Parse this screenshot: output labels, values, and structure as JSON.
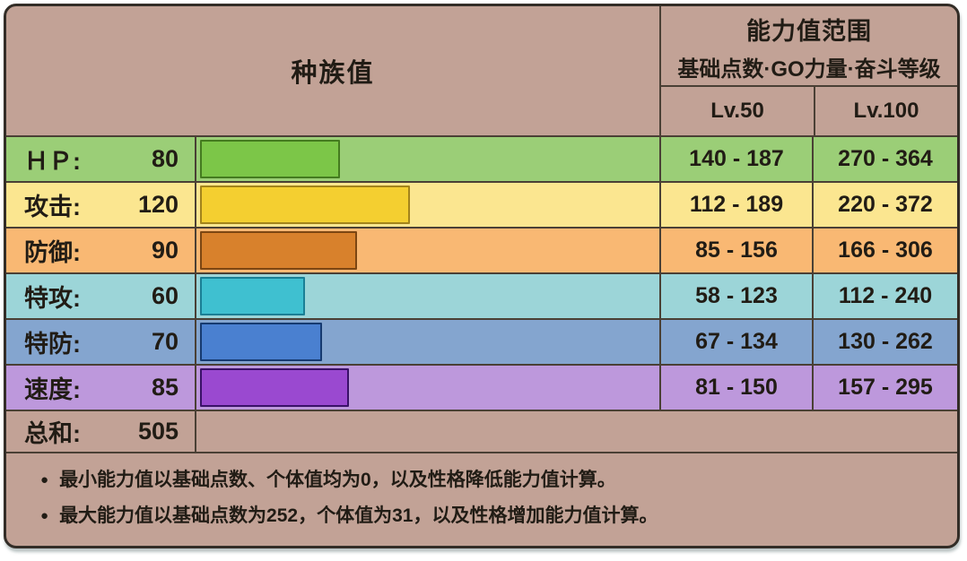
{
  "panel": {
    "header": {
      "left_title": "种族值",
      "range_title": "能力值范围",
      "range_subtitle": "基础点数·GO力量·奋斗等级",
      "lv50": "Lv.50",
      "lv100": "Lv.100"
    },
    "stats": [
      {
        "name": "hp",
        "label": "ＨＰ:",
        "value": "80",
        "lv50_range": "140 - 187",
        "lv100_range": "270 - 364",
        "row_bg": "#9bce77",
        "bar_fill": "#7cc648",
        "bar_border": "#447b1f"
      },
      {
        "name": "attack",
        "label": "攻击:",
        "value": "120",
        "lv50_range": "112 - 189",
        "lv100_range": "220 - 372",
        "row_bg": "#fbe690",
        "bar_fill": "#f4cf30",
        "bar_border": "#a3841b"
      },
      {
        "name": "defense",
        "label": "防御:",
        "value": "90",
        "lv50_range": "85 - 156",
        "lv100_range": "166 - 306",
        "row_bg": "#f9b873",
        "bar_fill": "#d8812c",
        "bar_border": "#7c4612"
      },
      {
        "name": "sp-attack",
        "label": "特攻:",
        "value": "60",
        "lv50_range": "58 - 123",
        "lv100_range": "112 - 240",
        "row_bg": "#9cd5d8",
        "bar_fill": "#3fc0d0",
        "bar_border": "#1a7f95"
      },
      {
        "name": "sp-defense",
        "label": "特防:",
        "value": "70",
        "lv50_range": "67 - 134",
        "lv100_range": "130 - 262",
        "row_bg": "#84a5cf",
        "bar_fill": "#4a80d0",
        "bar_border": "#163a70"
      },
      {
        "name": "speed",
        "label": "速度:",
        "value": "85",
        "lv50_range": "81 - 150",
        "lv100_range": "157 - 295",
        "row_bg": "#bd98dc",
        "bar_fill": "#9a49d0",
        "bar_border": "#3a1168"
      }
    ],
    "total": {
      "label": "总和:",
      "value": "505"
    },
    "notes": [
      {
        "bullet": "●",
        "text": "最小能力值以基础点数、个体值均为0，以及性格降低能力值计算。"
      },
      {
        "bullet": "●",
        "text": "最大能力值以基础点数为252，个体值为31，以及性格增加能力值计算。"
      }
    ],
    "colors": {
      "panel_bg": "#c2a296",
      "cell_border": "#4a4035",
      "outer_border": "#332d27",
      "text": "#211c15"
    }
  },
  "chart_data": {
    "type": "bar",
    "title": "种族值",
    "orientation": "horizontal",
    "categories": [
      "ＨＰ",
      "攻击",
      "防御",
      "特攻",
      "特防",
      "速度"
    ],
    "values": [
      80,
      120,
      90,
      60,
      70,
      85
    ],
    "total": 505,
    "xlim": [
      0,
      255
    ],
    "bar_colors": [
      "#7cc648",
      "#f4cf30",
      "#d8812c",
      "#3fc0d0",
      "#4a80d0",
      "#9a49d0"
    ],
    "range_columns": {
      "header": "能力值范围",
      "subtitle": "基础点数·GO力量·奋斗等级",
      "lv50": [
        "140 - 187",
        "112 - 189",
        "85 - 156",
        "58 - 123",
        "67 - 134",
        "81 - 150"
      ],
      "lv100": [
        "270 - 364",
        "220 - 372",
        "166 - 306",
        "112 - 240",
        "130 - 262",
        "157 - 295"
      ]
    },
    "footnotes": [
      "最小能力值以基础点数、个体值均为0，以及性格降低能力值计算。",
      "最大能力值以基础点数为252，个体值为31，以及性格增加能力值计算。"
    ]
  }
}
